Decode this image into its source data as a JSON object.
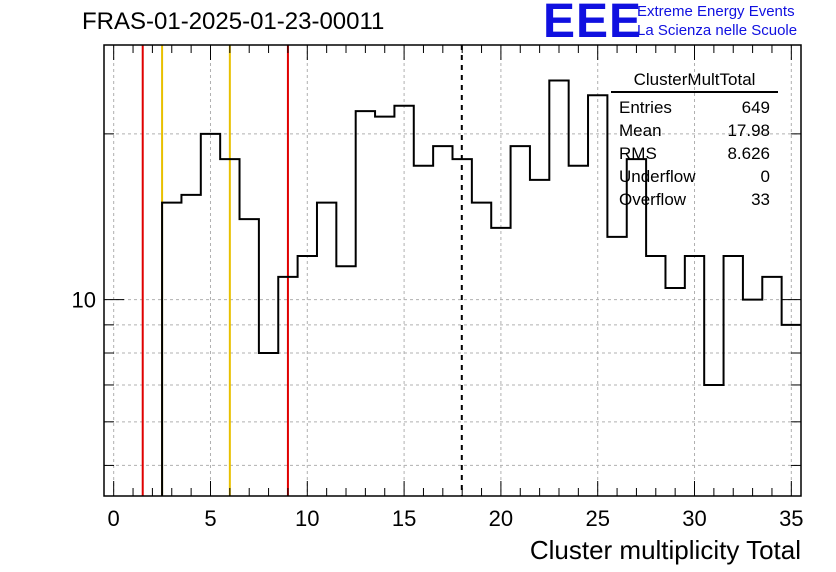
{
  "title": "FRAS-01-2025-01-23-00011",
  "logo": {
    "mark": "EEE",
    "line1": "Extreme Energy Events",
    "line2": "La Scienza nelle Scuole",
    "color": "#1010e0"
  },
  "stats": {
    "name": "ClusterMultTotal",
    "rows": [
      {
        "label": "Entries",
        "value": "649"
      },
      {
        "label": "Mean",
        "value": "17.98"
      },
      {
        "label": "RMS",
        "value": "8.626"
      },
      {
        "label": "Underflow",
        "value": "0"
      },
      {
        "label": "Overflow",
        "value": "33"
      }
    ]
  },
  "chart_data": {
    "type": "bar",
    "style": "step-histogram",
    "xlabel": "Cluster multiplicity Total",
    "ylabel": "",
    "xlim": [
      -0.5,
      35.5
    ],
    "ylim": [
      4.4,
      29
    ],
    "ylog": true,
    "grid": true,
    "bin_width": 1,
    "bin_edges_start": 2.5,
    "values": [
      15,
      15.5,
      20,
      18,
      14,
      8,
      11,
      12,
      15,
      11.5,
      22,
      21.5,
      22.5,
      17.5,
      19,
      18,
      15,
      13.5,
      19,
      16.5,
      25,
      17.5,
      23.5,
      13,
      18,
      12,
      10.5,
      12,
      7,
      12,
      10,
      11,
      9
    ],
    "y_tick_labels": [
      {
        "value": 10,
        "label": "10"
      }
    ],
    "x_ticks": [
      0,
      5,
      10,
      15,
      20,
      25,
      30,
      35
    ],
    "vertical_lines": [
      {
        "x": 1.5,
        "color": "#e00000",
        "style": "solid"
      },
      {
        "x": 2.5,
        "color": "#e8c000",
        "style": "solid"
      },
      {
        "x": 6,
        "color": "#e8c000",
        "style": "solid"
      },
      {
        "x": 9,
        "color": "#e00000",
        "style": "solid"
      },
      {
        "x": 17.98,
        "color": "#000000",
        "style": "dashed"
      }
    ]
  }
}
